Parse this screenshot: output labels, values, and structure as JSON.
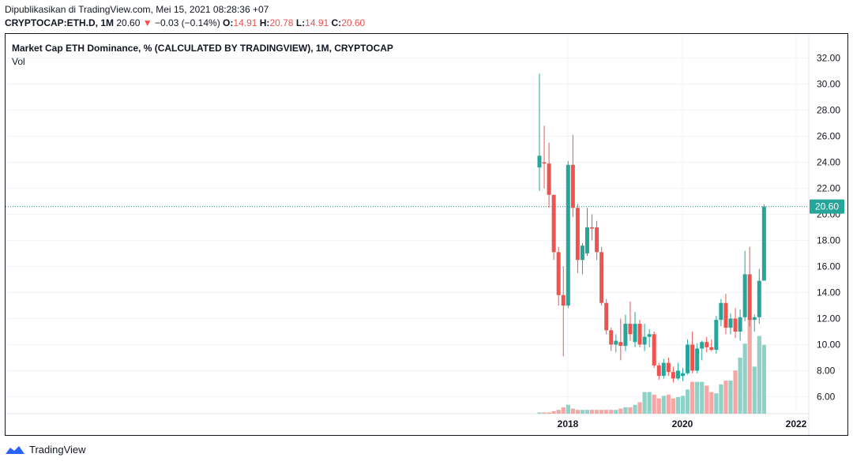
{
  "header": {
    "published": "Dipublikasikan di TradingView.com, Mei 15, 2021 08:28:36 +07",
    "symbol": "CRYPTOCAP:ETH.D, 1M",
    "last": "20.60",
    "change_arrow": "▼",
    "change": "−0.03 (−0.14%)",
    "open_label": "O:",
    "open": "14.91",
    "high_label": "H:",
    "high": "20.78",
    "low_label": "L:",
    "low": "14.91",
    "close_label": "C:",
    "close": "20.60"
  },
  "chart_title": "Market Cap ETH Dominance, % (CALCULATED BY TRADINGVIEW), 1M, CRYPTOCAP",
  "volume_label": "Vol",
  "footer": {
    "brand": "TradingView",
    "logo_icon": "tradingview-logo-icon"
  },
  "colors": {
    "up": "#26a69a",
    "down": "#ef5350",
    "vol_up": "#8fd1c6",
    "vol_down": "#f4a7a5",
    "last_price": "#26a69a"
  },
  "chart_data": {
    "type": "candlestick",
    "title": "Market Cap ETH Dominance, % (CALCULATED BY TRADINGVIEW), 1M, CRYPTOCAP",
    "ylim": [
      4.8,
      33
    ],
    "y_ticks": [
      "6.00",
      "8.00",
      "10.00",
      "12.00",
      "14.00",
      "16.00",
      "18.00",
      "20.00",
      "22.00",
      "24.00",
      "26.00",
      "28.00",
      "30.00",
      "32.00"
    ],
    "x_ticks": [
      "2018",
      "2020",
      "2022"
    ],
    "last_price_label": "20.60",
    "grid": true,
    "candles": [
      {
        "x": "2017-06",
        "o": 23.6,
        "h": 30.8,
        "l": 21.8,
        "c": 24.5,
        "v": 1
      },
      {
        "x": "2017-07",
        "o": 24.0,
        "h": 26.8,
        "l": 22.0,
        "c": 23.9,
        "v": 1
      },
      {
        "x": "2017-08",
        "o": 23.9,
        "h": 25.5,
        "l": 20.5,
        "c": 21.5,
        "v": 1
      },
      {
        "x": "2017-09",
        "o": 21.5,
        "h": 21.5,
        "l": 16.5,
        "c": 17.1,
        "v": 2
      },
      {
        "x": "2017-10",
        "o": 17.1,
        "h": 17.5,
        "l": 13.0,
        "c": 13.8,
        "v": 3
      },
      {
        "x": "2017-11",
        "o": 13.8,
        "h": 16.0,
        "l": 9.1,
        "c": 13.0,
        "v": 5
      },
      {
        "x": "2017-12",
        "o": 13.0,
        "h": 24.1,
        "l": 12.8,
        "c": 23.8,
        "v": 7
      },
      {
        "x": "2018-01",
        "o": 23.8,
        "h": 26.1,
        "l": 19.8,
        "c": 20.5,
        "v": 4
      },
      {
        "x": "2018-02",
        "o": 20.5,
        "h": 20.8,
        "l": 15.5,
        "c": 16.5,
        "v": 3
      },
      {
        "x": "2018-03",
        "o": 16.5,
        "h": 17.8,
        "l": 15.4,
        "c": 17.6,
        "v": 3
      },
      {
        "x": "2018-04",
        "o": 17.0,
        "h": 20.5,
        "l": 16.8,
        "c": 19.0,
        "v": 3
      },
      {
        "x": "2018-05",
        "o": 19.0,
        "h": 20.0,
        "l": 18.0,
        "c": 18.9,
        "v": 3
      },
      {
        "x": "2018-06",
        "o": 19.0,
        "h": 19.5,
        "l": 16.5,
        "c": 17.1,
        "v": 3
      },
      {
        "x": "2018-07",
        "o": 17.1,
        "h": 17.5,
        "l": 13.0,
        "c": 13.2,
        "v": 3
      },
      {
        "x": "2018-08",
        "o": 13.2,
        "h": 13.5,
        "l": 10.8,
        "c": 11.1,
        "v": 3
      },
      {
        "x": "2018-09",
        "o": 11.1,
        "h": 11.3,
        "l": 9.5,
        "c": 10.0,
        "v": 3
      },
      {
        "x": "2018-10",
        "o": 10.0,
        "h": 10.8,
        "l": 9.4,
        "c": 10.3,
        "v": 3
      },
      {
        "x": "2018-11",
        "o": 10.2,
        "h": 12.0,
        "l": 8.8,
        "c": 9.9,
        "v": 4
      },
      {
        "x": "2018-12",
        "o": 9.9,
        "h": 12.3,
        "l": 9.5,
        "c": 11.6,
        "v": 5
      },
      {
        "x": "2019-01",
        "o": 11.6,
        "h": 13.3,
        "l": 10.3,
        "c": 10.8,
        "v": 5
      },
      {
        "x": "2019-02",
        "o": 10.2,
        "h": 12.5,
        "l": 9.8,
        "c": 11.6,
        "v": 7
      },
      {
        "x": "2019-03",
        "o": 11.6,
        "h": 11.9,
        "l": 9.8,
        "c": 10.0,
        "v": 9
      },
      {
        "x": "2019-04",
        "o": 10.0,
        "h": 11.6,
        "l": 9.5,
        "c": 10.6,
        "v": 17
      },
      {
        "x": "2019-05",
        "o": 10.6,
        "h": 11.2,
        "l": 9.8,
        "c": 10.8,
        "v": 17
      },
      {
        "x": "2019-06",
        "o": 10.8,
        "h": 11.0,
        "l": 8.2,
        "c": 8.4,
        "v": 15
      },
      {
        "x": "2019-07",
        "o": 8.4,
        "h": 8.6,
        "l": 7.3,
        "c": 7.6,
        "v": 12
      },
      {
        "x": "2019-08",
        "o": 7.6,
        "h": 8.9,
        "l": 7.4,
        "c": 8.6,
        "v": 14
      },
      {
        "x": "2019-09",
        "o": 8.6,
        "h": 9.0,
        "l": 7.6,
        "c": 7.9,
        "v": 15
      },
      {
        "x": "2019-10",
        "o": 7.9,
        "h": 8.3,
        "l": 7.1,
        "c": 7.4,
        "v": 12
      },
      {
        "x": "2019-11",
        "o": 7.4,
        "h": 8.6,
        "l": 7.3,
        "c": 8.0,
        "v": 13
      },
      {
        "x": "2019-12",
        "o": 7.6,
        "h": 8.2,
        "l": 7.2,
        "c": 7.8,
        "v": 14
      },
      {
        "x": "2020-01",
        "o": 7.8,
        "h": 10.4,
        "l": 7.7,
        "c": 10.0,
        "v": 19
      },
      {
        "x": "2020-02",
        "o": 10.0,
        "h": 11.0,
        "l": 7.8,
        "c": 8.0,
        "v": 25
      },
      {
        "x": "2020-03",
        "o": 8.0,
        "h": 10.1,
        "l": 7.8,
        "c": 9.7,
        "v": 25
      },
      {
        "x": "2020-04",
        "o": 9.7,
        "h": 10.3,
        "l": 8.8,
        "c": 10.2,
        "v": 25
      },
      {
        "x": "2020-05",
        "o": 10.2,
        "h": 10.6,
        "l": 9.4,
        "c": 9.8,
        "v": 22
      },
      {
        "x": "2020-06",
        "o": 9.8,
        "h": 10.4,
        "l": 9.5,
        "c": 9.6,
        "v": 17
      },
      {
        "x": "2020-07",
        "o": 9.6,
        "h": 12.2,
        "l": 9.3,
        "c": 11.9,
        "v": 16
      },
      {
        "x": "2020-08",
        "o": 11.9,
        "h": 13.5,
        "l": 11.4,
        "c": 13.2,
        "v": 23
      },
      {
        "x": "2020-09",
        "o": 13.2,
        "h": 13.9,
        "l": 10.8,
        "c": 11.3,
        "v": 26
      },
      {
        "x": "2020-10",
        "o": 11.3,
        "h": 12.4,
        "l": 10.8,
        "c": 12.0,
        "v": 26
      },
      {
        "x": "2020-11",
        "o": 12.0,
        "h": 12.8,
        "l": 10.5,
        "c": 11.0,
        "v": 34
      },
      {
        "x": "2020-12",
        "o": 11.0,
        "h": 12.7,
        "l": 10.3,
        "c": 12.1,
        "v": 44
      },
      {
        "x": "2021-01",
        "o": 12.1,
        "h": 17.2,
        "l": 11.8,
        "c": 15.4,
        "v": 55
      },
      {
        "x": "2021-02",
        "o": 15.4,
        "h": 17.5,
        "l": 11.4,
        "c": 11.9,
        "v": 75
      },
      {
        "x": "2021-03",
        "o": 11.9,
        "h": 12.3,
        "l": 11.0,
        "c": 12.1,
        "v": 37
      },
      {
        "x": "2021-04",
        "o": 12.1,
        "h": 15.8,
        "l": 11.6,
        "c": 14.9,
        "v": 61
      },
      {
        "x": "2021-05",
        "o": 14.91,
        "h": 20.78,
        "l": 14.91,
        "c": 20.6,
        "v": 54
      }
    ]
  }
}
